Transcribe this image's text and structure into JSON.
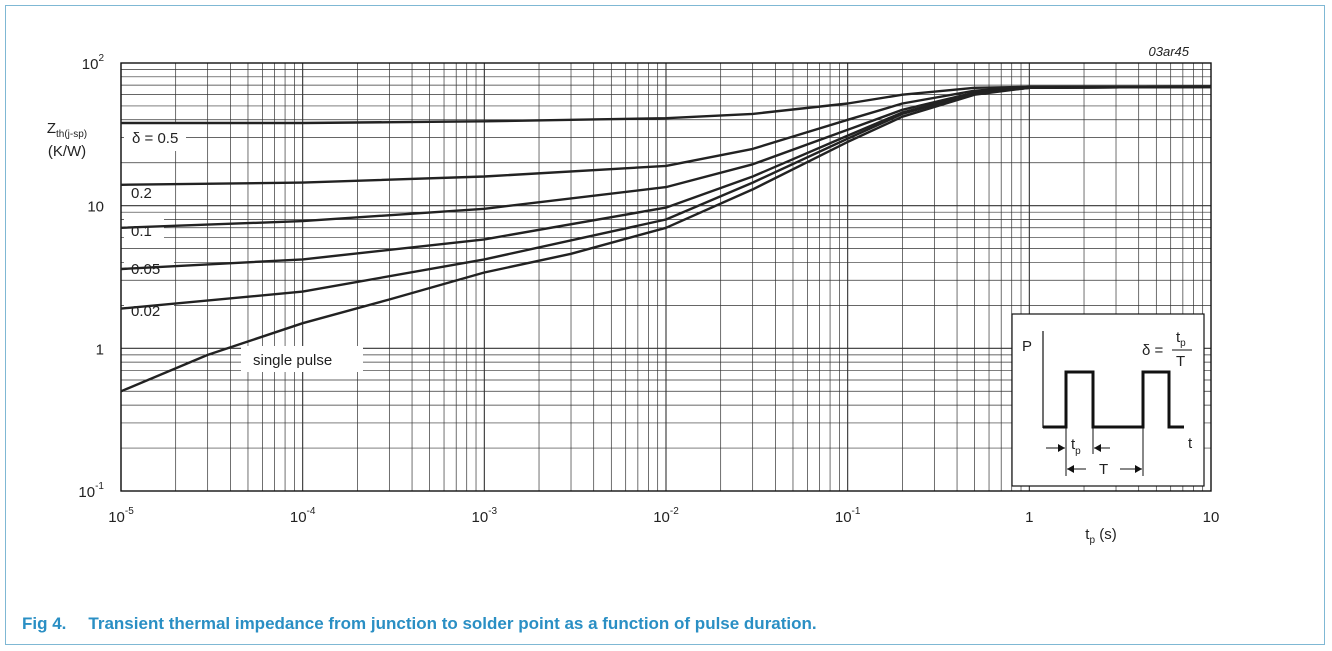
{
  "figure_id": "03ar45",
  "caption": {
    "label": "Fig 4.",
    "text": "Transient thermal impedance from junction to solder point as a function of pulse duration."
  },
  "colors": {
    "caption": "#2a8fc4",
    "curve": "#222222",
    "grid": "#333333",
    "frame": "#7fb8d4"
  },
  "chart_data": {
    "type": "line",
    "x_scale": "log",
    "y_scale": "log",
    "xlim": [
      1e-05,
      10
    ],
    "ylim": [
      0.1,
      100
    ],
    "grid": true,
    "xlabel": {
      "main": "t",
      "sub": "p",
      "unit": "(s)"
    },
    "ylabel": {
      "main": "Z",
      "sub": "th(j-sp)",
      "unit": "(K/W)"
    },
    "x_ticks": [
      {
        "base": "10",
        "exp": "-5"
      },
      {
        "base": "10",
        "exp": "-4"
      },
      {
        "base": "10",
        "exp": "-3"
      },
      {
        "base": "10",
        "exp": "-2"
      },
      {
        "base": "10",
        "exp": "-1"
      },
      {
        "base": "1",
        "exp": ""
      },
      {
        "base": "10",
        "exp": ""
      }
    ],
    "y_ticks": [
      {
        "base": "10",
        "exp": "-1"
      },
      {
        "base": "1",
        "exp": ""
      },
      {
        "base": "10",
        "exp": ""
      },
      {
        "base": "10",
        "exp": "2"
      }
    ],
    "series": [
      {
        "name": "δ = 0.5",
        "x": [
          1e-05,
          0.0001,
          0.001,
          0.01,
          0.03,
          0.1,
          0.2,
          0.5,
          1,
          10
        ],
        "y": [
          38,
          38,
          39,
          41,
          44,
          52,
          60,
          67,
          68,
          68
        ]
      },
      {
        "name": "0.2",
        "x": [
          1e-05,
          0.0001,
          0.001,
          0.01,
          0.03,
          0.1,
          0.2,
          0.5,
          1,
          10
        ],
        "y": [
          14,
          14.5,
          16,
          19,
          25,
          40,
          52,
          64,
          68,
          68
        ]
      },
      {
        "name": "0.1",
        "x": [
          1e-05,
          0.0001,
          0.001,
          0.01,
          0.03,
          0.1,
          0.2,
          0.5,
          1,
          10
        ],
        "y": [
          7,
          7.8,
          9.5,
          13.5,
          19.5,
          34,
          47,
          62,
          67,
          68
        ]
      },
      {
        "name": "0.05",
        "x": [
          1e-05,
          0.0001,
          0.001,
          0.01,
          0.03,
          0.1,
          0.2,
          0.5,
          1,
          10
        ],
        "y": [
          3.6,
          4.2,
          5.8,
          9.7,
          16,
          31,
          45,
          61,
          67,
          68
        ]
      },
      {
        "name": "0.02",
        "x": [
          1e-05,
          0.0001,
          0.001,
          0.01,
          0.03,
          0.1,
          0.2,
          0.5,
          1,
          10
        ],
        "y": [
          1.9,
          2.5,
          4.2,
          8,
          14.5,
          29.5,
          44,
          61,
          67,
          68
        ]
      },
      {
        "name": "single pulse",
        "x": [
          1e-05,
          3e-05,
          0.0001,
          0.0003,
          0.001,
          0.003,
          0.01,
          0.03,
          0.1,
          0.2,
          0.5,
          1,
          10
        ],
        "y": [
          0.5,
          0.9,
          1.5,
          2.2,
          3.4,
          4.6,
          7,
          13,
          28,
          42,
          60,
          67,
          68
        ]
      }
    ],
    "annotations": {
      "series_labels": [
        "δ = 0.5",
        "0.2",
        "0.1",
        "0.05",
        "0.02",
        "single pulse"
      ],
      "inset": {
        "p_label": "P",
        "t_label": "t",
        "delta_symbol": "δ =",
        "fraction_num": "t",
        "fraction_num_sub": "p",
        "fraction_den": "T",
        "tp_label": "t",
        "tp_sub": "p",
        "period_label": "T"
      }
    }
  }
}
